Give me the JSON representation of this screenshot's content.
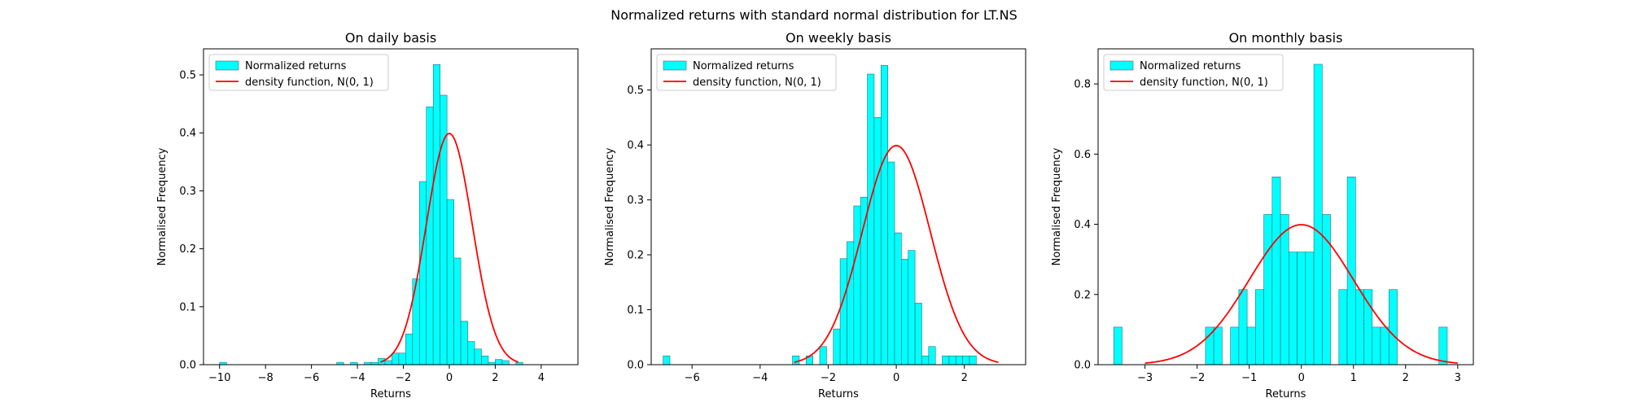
{
  "suptitle": "Normalized returns with standard normal distribution for LT.NS",
  "colors": {
    "bar_fill": "#00ffff",
    "bar_edge": "#2b6f6f",
    "curve": "#ff0000",
    "axes": "#000000"
  },
  "chart_data": [
    {
      "type": "bar",
      "title": "On daily basis",
      "xlabel": "Returns",
      "ylabel": "Normalised Frequency",
      "xlim": [
        -10.7,
        5.6
      ],
      "ylim": [
        0,
        0.545
      ],
      "xticks": [
        -10,
        -8,
        -6,
        -4,
        -2,
        0,
        2,
        4
      ],
      "yticks": [
        0.0,
        0.1,
        0.2,
        0.3,
        0.4,
        0.5
      ],
      "legend": {
        "position": "top-left",
        "entries": [
          "Normalized returns",
          "density function, N(0, 1)"
        ]
      },
      "bin_start": -10.0,
      "bin_width": 0.3,
      "values": [
        0.004,
        0,
        0,
        0,
        0,
        0,
        0,
        0,
        0,
        0,
        0,
        0,
        0,
        0,
        0,
        0,
        0,
        0.004,
        0,
        0.004,
        0,
        0.004,
        0.004,
        0.011,
        0.007,
        0.02,
        0.02,
        0.053,
        0.148,
        0.316,
        0.445,
        0.518,
        0.465,
        0.285,
        0.184,
        0.075,
        0.04,
        0.027,
        0.015,
        0.004,
        0.009,
        0.007,
        0,
        0.004,
        0,
        0
      ],
      "series": [
        {
          "name": "density function, N(0, 1)",
          "function": "standard normal pdf",
          "x_range": [
            -3,
            3
          ]
        }
      ]
    },
    {
      "type": "bar",
      "title": "On weekly basis",
      "xlabel": "Returns",
      "ylabel": "Normalised Frequency",
      "xlim": [
        -7.2,
        3.8
      ],
      "ylim": [
        0,
        0.575
      ],
      "xticks": [
        -6,
        -4,
        -2,
        0,
        2
      ],
      "yticks": [
        0.0,
        0.1,
        0.2,
        0.3,
        0.4,
        0.5
      ],
      "legend": {
        "position": "top-left",
        "entries": [
          "Normalized returns",
          "density function, N(0, 1)"
        ]
      },
      "bin_start": -6.85,
      "bin_width": 0.2,
      "values": [
        0.016,
        0,
        0,
        0,
        0,
        0,
        0,
        0,
        0,
        0,
        0,
        0,
        0,
        0,
        0,
        0,
        0,
        0,
        0,
        0.016,
        0,
        0.016,
        0,
        0.033,
        0,
        0.065,
        0.193,
        0.224,
        0.289,
        0.305,
        0.529,
        0.45,
        0.545,
        0.369,
        0.24,
        0.192,
        0.208,
        0.112,
        0.016,
        0.033,
        0,
        0.016,
        0.016,
        0.016,
        0.016,
        0.016
      ],
      "series": [
        {
          "name": "density function, N(0, 1)",
          "function": "standard normal pdf",
          "x_range": [
            -3,
            3
          ]
        }
      ]
    },
    {
      "type": "bar",
      "title": "On monthly basis",
      "xlabel": "Returns",
      "ylabel": "Normalised Frequency",
      "xlim": [
        -3.9,
        3.3
      ],
      "ylim": [
        0,
        0.9
      ],
      "xticks": [
        -3,
        -2,
        -1,
        0,
        1,
        2,
        3
      ],
      "yticks": [
        0.0,
        0.2,
        0.4,
        0.6,
        0.8
      ],
      "legend": {
        "position": "top-left",
        "entries": [
          "Normalized returns",
          "density function, N(0, 1)"
        ]
      },
      "bin_start": -3.6,
      "bin_width": 0.16,
      "values": [
        0.107,
        0,
        0,
        0,
        0,
        0,
        0,
        0,
        0,
        0,
        0,
        0.107,
        0.107,
        0,
        0.107,
        0.214,
        0.107,
        0.214,
        0.428,
        0.535,
        0.428,
        0.321,
        0.321,
        0.321,
        0.856,
        0.428,
        0,
        0.214,
        0.535,
        0.214,
        0.214,
        0.107,
        0.107,
        0.214,
        0,
        0,
        0,
        0,
        0,
        0.107
      ],
      "series": [
        {
          "name": "density function, N(0, 1)",
          "function": "standard normal pdf",
          "x_range": [
            -3,
            3
          ]
        }
      ]
    }
  ]
}
